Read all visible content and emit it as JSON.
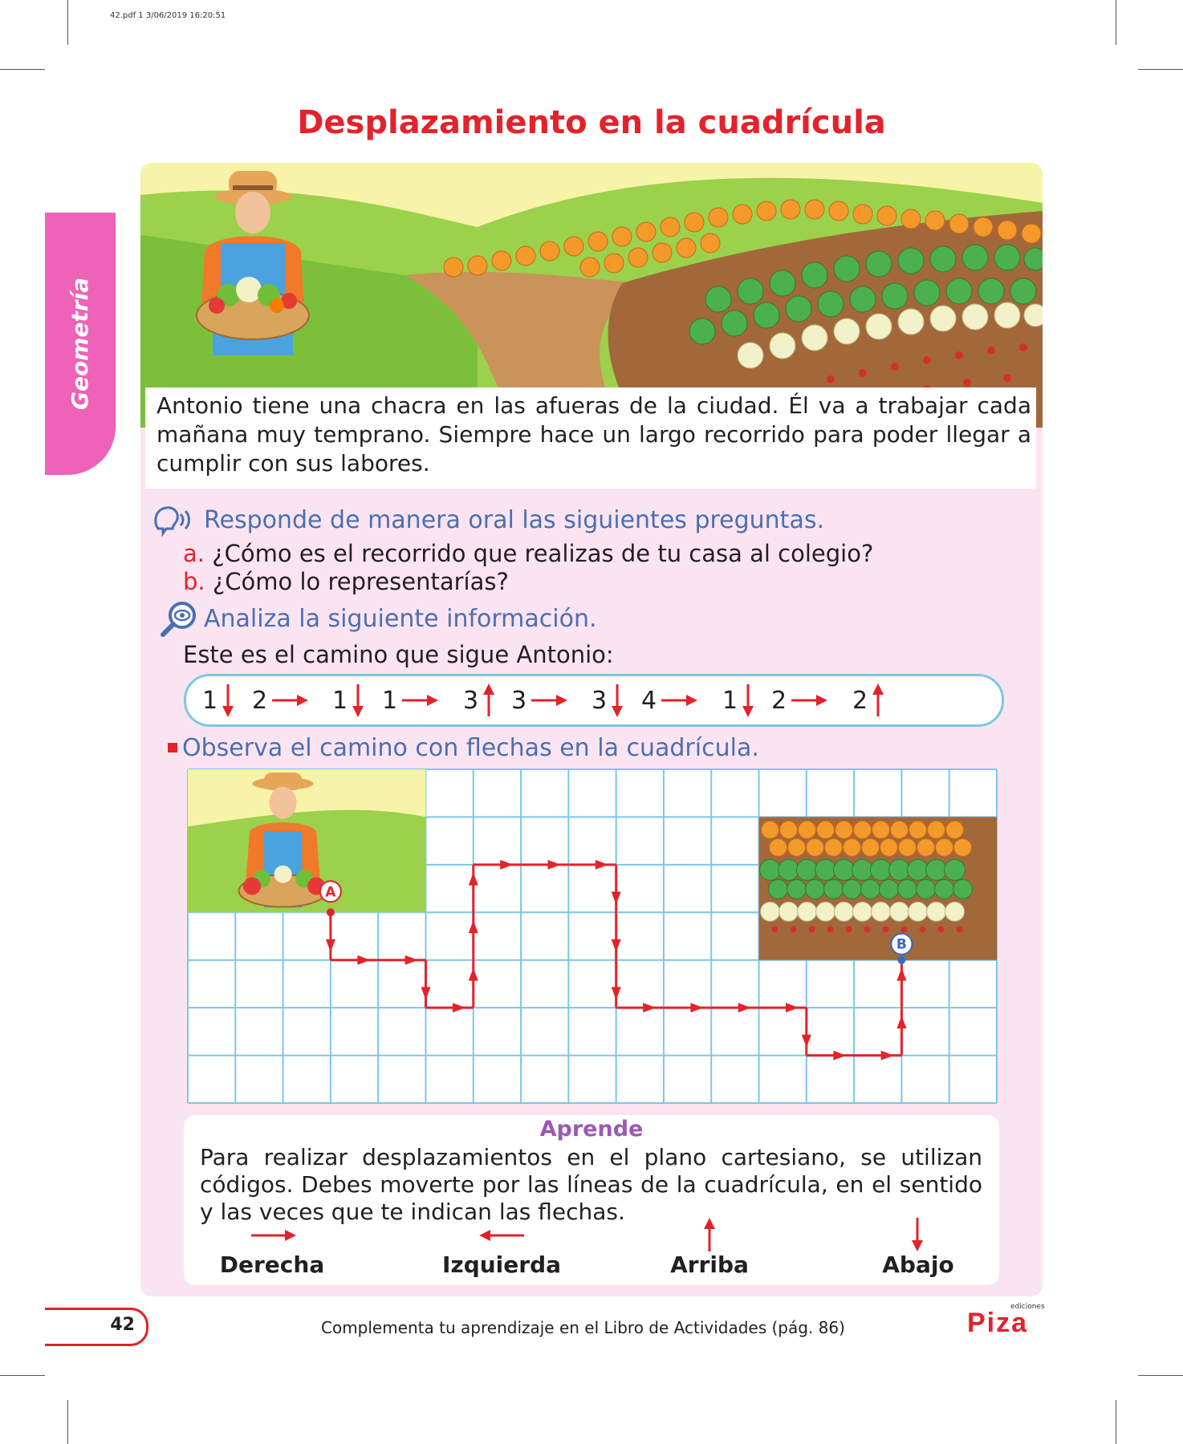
{
  "print_header": "42.pdf   1   3/06/2019   16:20:51",
  "title": "Desplazamiento en la cuadrícula",
  "side_tab": "Geometría",
  "intro": "Antonio tiene una  chacra en  las afueras de la ciudad. Él va a trabajar cada mañana muy temprano. Siempre hace un largo recorrido para poder llegar a cumplir con sus labores.",
  "section_oral": {
    "heading": "Responde de manera oral las siguientes preguntas.",
    "questions": [
      {
        "letter": "a.",
        "text": "¿Cómo es el recorrido que realizas de tu casa al colegio?"
      },
      {
        "letter": "b.",
        "text": "¿Cómo lo representarías?"
      }
    ]
  },
  "section_analyze": {
    "heading": "Analiza la siguiente información.",
    "intro": "Este es el camino que sigue Antonio:"
  },
  "path_steps": [
    {
      "count": "1",
      "dir": "down"
    },
    {
      "count": "2",
      "dir": "right"
    },
    {
      "count": "1",
      "dir": "down"
    },
    {
      "count": "1",
      "dir": "right"
    },
    {
      "count": "3",
      "dir": "up"
    },
    {
      "count": "3",
      "dir": "right"
    },
    {
      "count": "3",
      "dir": "down"
    },
    {
      "count": "4",
      "dir": "right"
    },
    {
      "count": "1",
      "dir": "down"
    },
    {
      "count": "2",
      "dir": "right"
    },
    {
      "count": "2",
      "dir": "up"
    }
  ],
  "section_observe": {
    "heading": "Observa el camino con flechas en la cuadrícula."
  },
  "grid": {
    "columns": 17,
    "rows": 7,
    "start_label": "A",
    "end_label": "B",
    "start_point": [
      3,
      3
    ]
  },
  "aprende": {
    "title": "Aprende",
    "text": "Para realizar desplazamientos en el plano cartesiano, se utilizan códigos. Debes moverte por las líneas de la cuadrícula, en el sentido y las veces que te indican las flechas.",
    "directions": [
      {
        "label": "Derecha",
        "icon": "arrow-right-icon"
      },
      {
        "label": "Izquierda",
        "icon": "arrow-left-icon"
      },
      {
        "label": "Arriba",
        "icon": "arrow-up-icon"
      },
      {
        "label": "Abajo",
        "icon": "arrow-down-icon"
      }
    ]
  },
  "page_number": "42",
  "footer": "Complementa tu aprendizaje en el Libro de Actividades (pág. 86)",
  "brand": {
    "small": "ediciones",
    "name": "Piza"
  },
  "colors": {
    "title_red": "#e3222b",
    "heading_blue": "#4a6fb3",
    "grid_blue": "#7cc6e8",
    "tab_pink": "#ee62b8",
    "panel_pink": "#fbe4f1"
  }
}
